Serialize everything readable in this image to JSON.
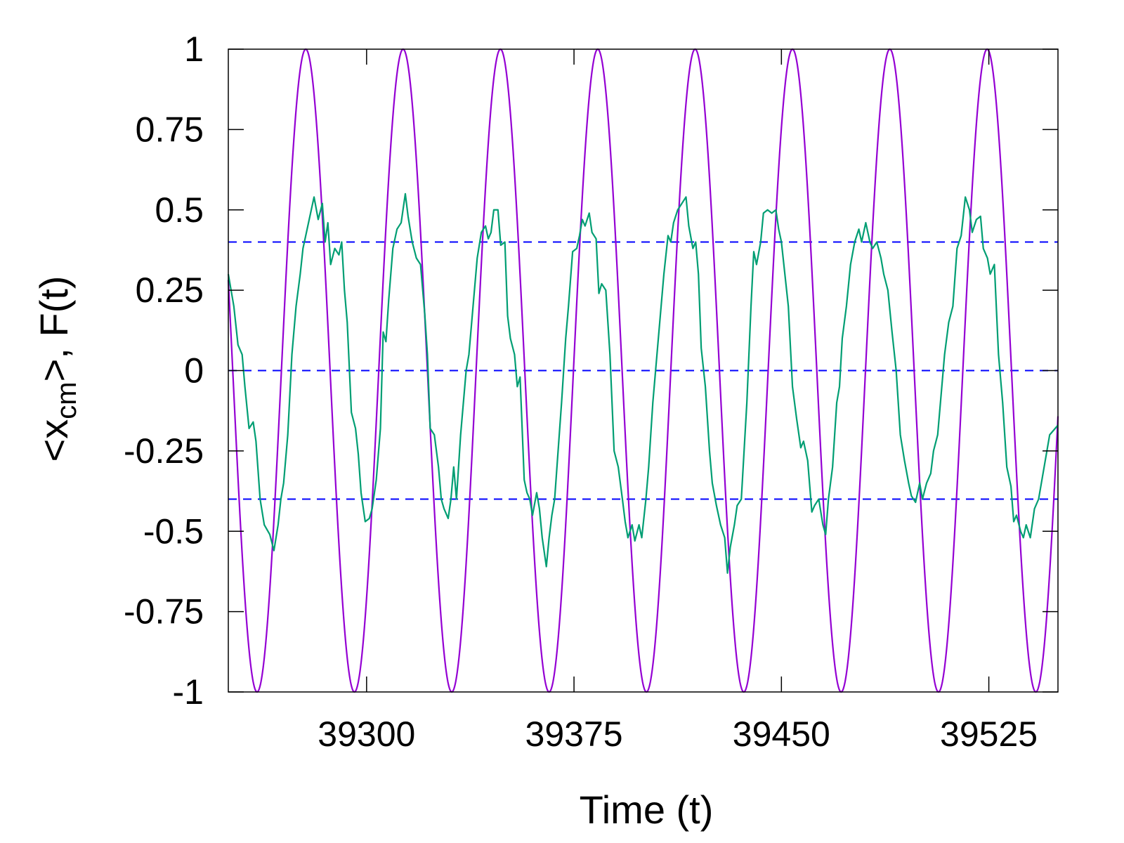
{
  "chart_data": {
    "type": "line",
    "xlabel": "Time (t)",
    "ylabel": {
      "prefix": "<x",
      "subscript": "cm",
      "suffix": ">, F(t)"
    },
    "xlim": [
      39250,
      39550
    ],
    "ylim": [
      -1,
      1
    ],
    "x_ticks": [
      39300,
      39375,
      39450,
      39525
    ],
    "x_tick_labels": [
      "39300",
      "39375",
      "39450",
      "39525"
    ],
    "y_ticks": [
      1,
      0.75,
      0.5,
      0.25,
      0,
      -0.25,
      -0.5,
      -0.75,
      -1
    ],
    "y_tick_labels": [
      "1",
      "0.75",
      "0.5",
      "0.25",
      "0",
      "-0.25",
      "-0.5",
      "-0.75",
      "-1"
    ],
    "grid": false,
    "legend": "none",
    "series": [
      {
        "kind": "force",
        "color": "#9400d3",
        "amplitude": 1,
        "period": 35.2,
        "peak_at": 39278.0,
        "x_start": 39250,
        "x_end": 39550
      },
      {
        "kind": "response",
        "color": "#009e73",
        "points": [
          [
            39250.0,
            0.3
          ],
          [
            39252.0,
            0.2
          ],
          [
            39253.5,
            0.08
          ],
          [
            39255.0,
            0.05
          ],
          [
            39256.0,
            -0.05
          ],
          [
            39257.5,
            -0.18
          ],
          [
            39259.0,
            -0.16
          ],
          [
            39260.0,
            -0.22
          ],
          [
            39261.5,
            -0.4
          ],
          [
            39263.0,
            -0.48
          ],
          [
            39265.0,
            -0.51
          ],
          [
            39266.5,
            -0.56
          ],
          [
            39268.0,
            -0.48
          ],
          [
            39269.0,
            -0.4
          ],
          [
            39270.0,
            -0.35
          ],
          [
            39271.5,
            -0.2
          ],
          [
            39273.0,
            0.05
          ],
          [
            39274.5,
            0.2
          ],
          [
            39276.0,
            0.3
          ],
          [
            39277.0,
            0.38
          ],
          [
            39278.0,
            0.42
          ],
          [
            39279.5,
            0.48
          ],
          [
            39281.0,
            0.54
          ],
          [
            39282.5,
            0.47
          ],
          [
            39284.0,
            0.52
          ],
          [
            39285.0,
            0.4
          ],
          [
            39286.0,
            0.46
          ],
          [
            39287.0,
            0.33
          ],
          [
            39288.5,
            0.38
          ],
          [
            39290.0,
            0.36
          ],
          [
            39291.0,
            0.4
          ],
          [
            39292.0,
            0.25
          ],
          [
            39293.0,
            0.15
          ],
          [
            39294.5,
            -0.13
          ],
          [
            39296.0,
            -0.18
          ],
          [
            39297.0,
            -0.26
          ],
          [
            39298.0,
            -0.38
          ],
          [
            39299.5,
            -0.47
          ],
          [
            39301.0,
            -0.46
          ],
          [
            39302.0,
            -0.43
          ],
          [
            39303.5,
            -0.34
          ],
          [
            39305.0,
            -0.18
          ],
          [
            39306.0,
            0.12
          ],
          [
            39307.0,
            0.09
          ],
          [
            39308.0,
            0.22
          ],
          [
            39309.5,
            0.38
          ],
          [
            39311.0,
            0.44
          ],
          [
            39312.5,
            0.46
          ],
          [
            39314.0,
            0.55
          ],
          [
            39315.0,
            0.48
          ],
          [
            39316.5,
            0.4
          ],
          [
            39318.0,
            0.35
          ],
          [
            39319.5,
            0.33
          ],
          [
            39321.0,
            0.18
          ],
          [
            39322.0,
            0.05
          ],
          [
            39323.0,
            -0.18
          ],
          [
            39324.5,
            -0.2
          ],
          [
            39326.0,
            -0.3
          ],
          [
            39327.0,
            -0.4
          ],
          [
            39328.0,
            -0.43
          ],
          [
            39329.5,
            -0.46
          ],
          [
            39330.5,
            -0.4
          ],
          [
            39331.5,
            -0.3
          ],
          [
            39332.5,
            -0.4
          ],
          [
            39334.0,
            -0.2
          ],
          [
            39336.0,
            0.0
          ],
          [
            39337.0,
            0.05
          ],
          [
            39338.5,
            0.2
          ],
          [
            39340.0,
            0.35
          ],
          [
            39341.5,
            0.43
          ],
          [
            39343.0,
            0.45
          ],
          [
            39344.0,
            0.41
          ],
          [
            39345.0,
            0.43
          ],
          [
            39346.0,
            0.5
          ],
          [
            39347.5,
            0.5
          ],
          [
            39348.5,
            0.39
          ],
          [
            39350.0,
            0.4
          ],
          [
            39351.0,
            0.17
          ],
          [
            39352.0,
            0.1
          ],
          [
            39353.5,
            0.05
          ],
          [
            39354.5,
            -0.05
          ],
          [
            39355.5,
            -0.02
          ],
          [
            39357.0,
            -0.34
          ],
          [
            39358.0,
            -0.38
          ],
          [
            39359.0,
            -0.4
          ],
          [
            39360.0,
            -0.45
          ],
          [
            39361.5,
            -0.38
          ],
          [
            39362.5,
            -0.43
          ],
          [
            39363.5,
            -0.52
          ],
          [
            39365.0,
            -0.61
          ],
          [
            39366.0,
            -0.52
          ],
          [
            39367.0,
            -0.45
          ],
          [
            39368.0,
            -0.4
          ],
          [
            39369.0,
            -0.28
          ],
          [
            39370.5,
            -0.1
          ],
          [
            39372.0,
            0.1
          ],
          [
            39373.0,
            0.2
          ],
          [
            39374.5,
            0.37
          ],
          [
            39376.0,
            0.38
          ],
          [
            39377.0,
            0.42
          ],
          [
            39378.0,
            0.47
          ],
          [
            39379.0,
            0.45
          ],
          [
            39380.5,
            0.49
          ],
          [
            39381.5,
            0.43
          ],
          [
            39383.0,
            0.41
          ],
          [
            39384.0,
            0.24
          ],
          [
            39385.0,
            0.27
          ],
          [
            39386.5,
            0.25
          ],
          [
            39388.0,
            0.05
          ],
          [
            39389.5,
            -0.25
          ],
          [
            39391.0,
            -0.3
          ],
          [
            39392.5,
            -0.4
          ],
          [
            39393.5,
            -0.47
          ],
          [
            39394.5,
            -0.52
          ],
          [
            39396.0,
            -0.48
          ],
          [
            39397.0,
            -0.53
          ],
          [
            39398.5,
            -0.48
          ],
          [
            39399.5,
            -0.52
          ],
          [
            39401.0,
            -0.4
          ],
          [
            39402.0,
            -0.3
          ],
          [
            39403.5,
            -0.1
          ],
          [
            39405.0,
            0.05
          ],
          [
            39406.0,
            0.15
          ],
          [
            39407.5,
            0.3
          ],
          [
            39409.0,
            0.42
          ],
          [
            39410.0,
            0.4
          ],
          [
            39411.0,
            0.46
          ],
          [
            39412.5,
            0.5
          ],
          [
            39414.0,
            0.52
          ],
          [
            39415.5,
            0.54
          ],
          [
            39416.5,
            0.45
          ],
          [
            39418.0,
            0.38
          ],
          [
            39419.0,
            0.4
          ],
          [
            39420.0,
            0.3
          ],
          [
            39421.0,
            0.07
          ],
          [
            39422.5,
            -0.05
          ],
          [
            39424.0,
            -0.25
          ],
          [
            39425.0,
            -0.35
          ],
          [
            39426.5,
            -0.42
          ],
          [
            39428.0,
            -0.48
          ],
          [
            39429.5,
            -0.52
          ],
          [
            39430.5,
            -0.63
          ],
          [
            39431.5,
            -0.55
          ],
          [
            39433.0,
            -0.48
          ],
          [
            39434.0,
            -0.42
          ],
          [
            39435.5,
            -0.4
          ],
          [
            39436.5,
            -0.25
          ],
          [
            39437.5,
            -0.1
          ],
          [
            39439.0,
            0.2
          ],
          [
            39440.0,
            0.37
          ],
          [
            39441.0,
            0.33
          ],
          [
            39442.5,
            0.4
          ],
          [
            39443.5,
            0.49
          ],
          [
            39445.0,
            0.5
          ],
          [
            39446.5,
            0.49
          ],
          [
            39448.0,
            0.5
          ],
          [
            39449.0,
            0.44
          ],
          [
            39450.0,
            0.4
          ],
          [
            39451.0,
            0.32
          ],
          [
            39452.5,
            0.2
          ],
          [
            39454.0,
            -0.05
          ],
          [
            39455.5,
            -0.15
          ],
          [
            39457.0,
            -0.24
          ],
          [
            39458.0,
            -0.22
          ],
          [
            39459.5,
            -0.28
          ],
          [
            39461.0,
            -0.44
          ],
          [
            39462.0,
            -0.42
          ],
          [
            39463.5,
            -0.4
          ],
          [
            39465.0,
            -0.48
          ],
          [
            39466.0,
            -0.51
          ],
          [
            39467.0,
            -0.4
          ],
          [
            39468.5,
            -0.3
          ],
          [
            39470.0,
            -0.1
          ],
          [
            39471.0,
            -0.05
          ],
          [
            39472.0,
            0.1
          ],
          [
            39473.5,
            0.2
          ],
          [
            39475.0,
            0.33
          ],
          [
            39476.5,
            0.4
          ],
          [
            39478.0,
            0.44
          ],
          [
            39479.0,
            0.4
          ],
          [
            39480.5,
            0.46
          ],
          [
            39482.0,
            0.4
          ],
          [
            39483.0,
            0.38
          ],
          [
            39484.5,
            0.4
          ],
          [
            39486.0,
            0.35
          ],
          [
            39487.0,
            0.3
          ],
          [
            39488.5,
            0.25
          ],
          [
            39490.0,
            0.12
          ],
          [
            39491.5,
            0.0
          ],
          [
            39493.0,
            -0.2
          ],
          [
            39494.5,
            -0.28
          ],
          [
            39496.0,
            -0.35
          ],
          [
            39497.0,
            -0.39
          ],
          [
            39498.5,
            -0.41
          ],
          [
            39500.0,
            -0.35
          ],
          [
            39501.0,
            -0.4
          ],
          [
            39502.5,
            -0.35
          ],
          [
            39504.0,
            -0.32
          ],
          [
            39505.0,
            -0.25
          ],
          [
            39506.5,
            -0.2
          ],
          [
            39508.0,
            -0.05
          ],
          [
            39509.0,
            0.05
          ],
          [
            39510.5,
            0.15
          ],
          [
            39512.0,
            0.2
          ],
          [
            39513.5,
            0.38
          ],
          [
            39515.0,
            0.42
          ],
          [
            39516.5,
            0.54
          ],
          [
            39518.0,
            0.5
          ],
          [
            39519.0,
            0.43
          ],
          [
            39520.5,
            0.47
          ],
          [
            39522.0,
            0.48
          ],
          [
            39523.0,
            0.38
          ],
          [
            39524.5,
            0.35
          ],
          [
            39525.5,
            0.3
          ],
          [
            39527.0,
            0.33
          ],
          [
            39528.5,
            0.05
          ],
          [
            39530.0,
            -0.1
          ],
          [
            39531.5,
            -0.3
          ],
          [
            39533.0,
            -0.36
          ],
          [
            39534.0,
            -0.47
          ],
          [
            39535.0,
            -0.45
          ],
          [
            39536.5,
            -0.5
          ],
          [
            39537.5,
            -0.52
          ],
          [
            39538.5,
            -0.48
          ],
          [
            39540.0,
            -0.52
          ],
          [
            39541.5,
            -0.43
          ],
          [
            39543.0,
            -0.4
          ],
          [
            39545.0,
            -0.3
          ],
          [
            39547.0,
            -0.2
          ],
          [
            39550.0,
            -0.17
          ]
        ]
      }
    ],
    "reference_lines": [
      {
        "y": 0.4,
        "color": "#0000ff",
        "style": "dashed"
      },
      {
        "y": 0,
        "color": "#0000ff",
        "style": "dashed"
      },
      {
        "y": -0.4,
        "color": "#0000ff",
        "style": "dashed"
      }
    ]
  }
}
